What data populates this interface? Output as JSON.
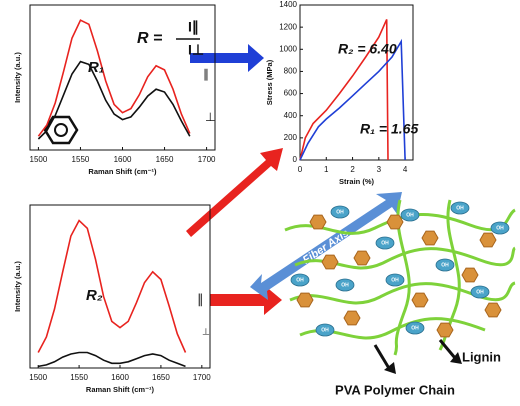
{
  "chart_data": [
    {
      "type": "line",
      "x_label": "Raman Shift (cm⁻¹)",
      "y_label": "Intensity (a.u.)",
      "x": [
        1500,
        1510,
        1520,
        1530,
        1540,
        1550,
        1560,
        1570,
        1580,
        1590,
        1600,
        1610,
        1620,
        1630,
        1640,
        1650,
        1660,
        1670,
        1680
      ],
      "xlim": [
        1490,
        1710
      ],
      "xticks": [
        1500,
        1550,
        1600,
        1650,
        1700
      ],
      "ylim": [
        0,
        1.05
      ],
      "series": [
        {
          "color": "#e8231f",
          "values": [
            0.1,
            0.18,
            0.34,
            0.57,
            0.81,
            0.94,
            0.91,
            0.72,
            0.5,
            0.33,
            0.27,
            0.3,
            0.4,
            0.53,
            0.61,
            0.58,
            0.44,
            0.26,
            0.12
          ]
        },
        {
          "color": "#111111",
          "values": [
            0.08,
            0.14,
            0.25,
            0.4,
            0.55,
            0.64,
            0.62,
            0.5,
            0.36,
            0.26,
            0.22,
            0.24,
            0.31,
            0.39,
            0.44,
            0.42,
            0.33,
            0.21,
            0.1
          ]
        }
      ],
      "annotations": [
        {
          "text": "R₁",
          "color": "#1f3fd6"
        },
        {
          "text": "R =",
          "color": "#111111"
        },
        {
          "text": "I∥",
          "color": "#111111"
        },
        {
          "text": "I⊥",
          "color": "#111111"
        },
        {
          "text": "∥",
          "color": "#e8231f"
        },
        {
          "text": "⊥",
          "color": "#111111"
        }
      ]
    },
    {
      "type": "line",
      "x_label": "Strain (%)",
      "y_label": "Stress (MPa)",
      "xlim": [
        0,
        4.3
      ],
      "xticks": [
        0,
        1,
        2,
        3,
        4
      ],
      "ylim": [
        0,
        1400
      ],
      "yticks": [
        0,
        200,
        400,
        600,
        800,
        1000,
        1200,
        1400
      ],
      "series": [
        {
          "color": "#e8231f",
          "x": [
            0,
            0.2,
            0.5,
            1,
            1.5,
            2,
            2.5,
            3,
            3.3,
            3.35
          ],
          "values": [
            0,
            200,
            330,
            450,
            600,
            760,
            930,
            1110,
            1270,
            0
          ]
        },
        {
          "color": "#1f3fd6",
          "x": [
            0,
            0.3,
            0.7,
            1,
            1.5,
            2,
            2.5,
            3,
            3.5,
            3.85,
            4
          ],
          "values": [
            0,
            150,
            300,
            370,
            470,
            580,
            690,
            800,
            930,
            1070,
            0
          ]
        }
      ],
      "annotations": [
        {
          "text": "R₂ = 6.40",
          "color": "#e8231f"
        },
        {
          "text": "R₁ = 1.65",
          "color": "#1f3fd6"
        }
      ]
    },
    {
      "type": "line",
      "x_label": "Raman Shift (cm⁻¹)",
      "y_label": "Intensity (a.u.)",
      "x": [
        1500,
        1510,
        1520,
        1530,
        1540,
        1550,
        1560,
        1570,
        1580,
        1590,
        1600,
        1610,
        1620,
        1630,
        1640,
        1650,
        1660,
        1670,
        1680
      ],
      "xlim": [
        1490,
        1710
      ],
      "xticks": [
        1500,
        1550,
        1600,
        1650,
        1700
      ],
      "ylim": [
        0,
        1.05
      ],
      "series": [
        {
          "color": "#e8231f",
          "values": [
            0.1,
            0.2,
            0.38,
            0.62,
            0.85,
            0.95,
            0.9,
            0.7,
            0.46,
            0.3,
            0.26,
            0.3,
            0.42,
            0.55,
            0.62,
            0.57,
            0.4,
            0.22,
            0.1
          ]
        },
        {
          "color": "#111111",
          "values": [
            0.01,
            0.02,
            0.04,
            0.07,
            0.09,
            0.1,
            0.1,
            0.08,
            0.05,
            0.03,
            0.03,
            0.04,
            0.06,
            0.08,
            0.09,
            0.08,
            0.05,
            0.03,
            0.01
          ]
        }
      ],
      "annotations": [
        {
          "text": "R₂",
          "color": "#e8231f"
        },
        {
          "text": "∥",
          "color": "#e8231f"
        },
        {
          "text": "⊥",
          "color": "#111111"
        }
      ]
    }
  ],
  "diagram": {
    "fiber_axis": "Fiber Axis",
    "lignin": "Lignin",
    "pva": "PVA Polymer Chain",
    "oh_labels": [
      "OH",
      "OH",
      "OH",
      "OH",
      "OH",
      "OH",
      "OH",
      "OH",
      "OH",
      "OH",
      "OH",
      "OH"
    ]
  }
}
